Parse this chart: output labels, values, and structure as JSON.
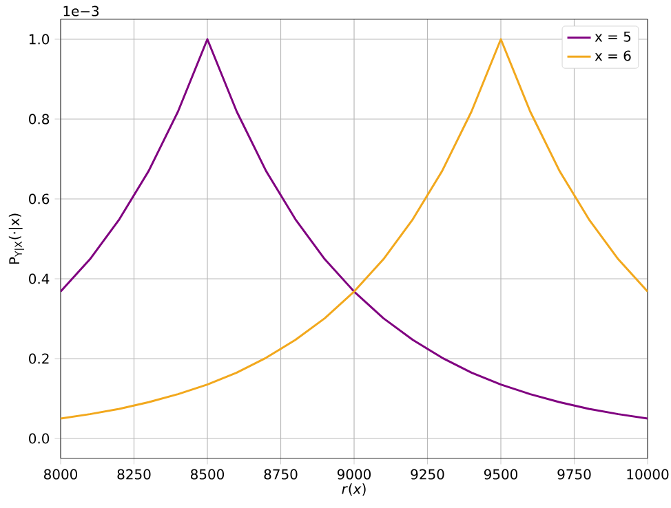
{
  "chart_data": {
    "type": "line",
    "xlabel": "*r*(*x*)",
    "ylabel": "P$_{Y|X}$(·|x)",
    "annotations": [
      "1e−3"
    ],
    "x": [
      8000,
      8100,
      8200,
      8300,
      8400,
      8500,
      8600,
      8700,
      8800,
      8900,
      9000,
      9100,
      9200,
      9300,
      9400,
      9500,
      9600,
      9700,
      9800,
      9900,
      10000
    ],
    "series": [
      {
        "name": "x = 5",
        "color": "#800080",
        "values": [
          0.368,
          0.449,
          0.549,
          0.67,
          0.819,
          1.0,
          0.819,
          0.67,
          0.549,
          0.449,
          0.368,
          0.301,
          0.247,
          0.202,
          0.165,
          0.135,
          0.111,
          0.091,
          0.074,
          0.061,
          0.05
        ]
      },
      {
        "name": "x = 6",
        "color": "#f2a81d",
        "values": [
          0.05,
          0.061,
          0.074,
          0.091,
          0.111,
          0.135,
          0.165,
          0.202,
          0.247,
          0.301,
          0.368,
          0.449,
          0.549,
          0.67,
          0.819,
          1.0,
          0.819,
          0.67,
          0.549,
          0.449,
          0.368
        ]
      }
    ],
    "xlim": [
      8000,
      10000
    ],
    "ylim": [
      -0.05,
      1.05
    ],
    "xticks": [
      8000,
      8250,
      8500,
      8750,
      9000,
      9250,
      9500,
      9750,
      10000
    ],
    "yticks": [
      {
        "value": 0,
        "label": "0.0"
      },
      {
        "value": 0.2,
        "label": "0.2"
      },
      {
        "value": 0.4,
        "label": "0.4"
      },
      {
        "value": 0.6,
        "label": "0.6"
      },
      {
        "value": 0.8,
        "label": "0.8"
      },
      {
        "value": 1.0,
        "label": "1.0"
      }
    ],
    "grid": true,
    "legend": "top right",
    "marker": "none",
    "line_style": "solid"
  }
}
